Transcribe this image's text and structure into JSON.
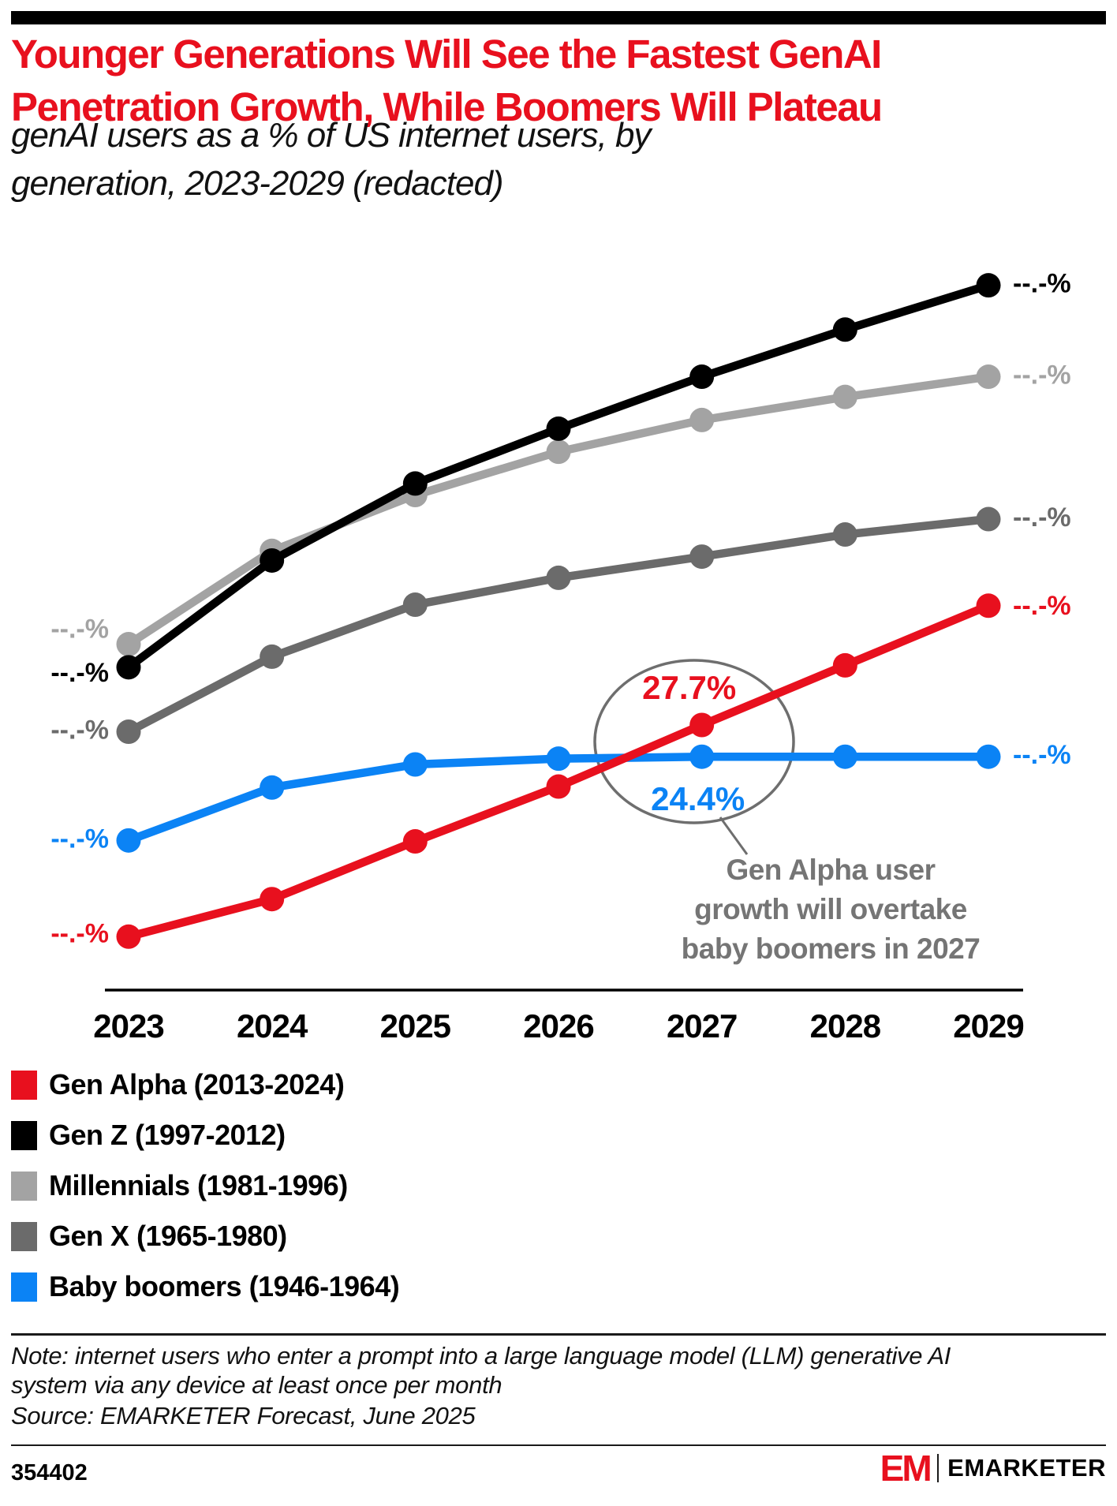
{
  "header": {
    "title_lines": [
      "Younger Generations Will See the Fastest GenAI",
      "Penetration Growth, While Boomers Will Plateau"
    ],
    "subtitle_lines": [
      "genAI users as a % of US internet users, by",
      "generation, 2023-2029 (redacted)"
    ]
  },
  "chart_data": {
    "type": "line",
    "title": "genAI users as a % of US internet users, by generation, 2023-2029 (redacted)",
    "x": [
      "2023",
      "2024",
      "2025",
      "2026",
      "2027",
      "2028",
      "2029"
    ],
    "xlabel": "",
    "ylabel": "genAI users as % of US internet users",
    "ylim": [
      0,
      82
    ],
    "grid": false,
    "legend_position": "bottom-left",
    "redacted_label": "--.-%",
    "series": [
      {
        "name": "Gen Alpha",
        "legend_label": "Gen Alpha (2013-2024)",
        "color": "#E8101E",
        "values": [
          5.7,
          9.6,
          15.6,
          21.3,
          27.7,
          33.9,
          40.1
        ]
      },
      {
        "name": "Gen Z",
        "legend_label": "Gen Z (1997-2012)",
        "color": "#000000",
        "values": [
          33.7,
          44.8,
          52.8,
          58.5,
          63.9,
          68.8,
          73.4
        ]
      },
      {
        "name": "Millennials",
        "legend_label": "Millennials (1981-1996)",
        "color": "#A3A3A3",
        "values": [
          36.1,
          45.8,
          51.6,
          56.1,
          59.4,
          61.8,
          63.9
        ]
      },
      {
        "name": "Gen X",
        "legend_label": "Gen X (1965-1980)",
        "color": "#6B6B6B",
        "values": [
          27.0,
          34.8,
          40.2,
          43.0,
          45.2,
          47.5,
          49.1
        ]
      },
      {
        "name": "Baby boomers",
        "legend_label": "Baby boomers (1946-1964)",
        "color": "#0B83F5",
        "values": [
          15.7,
          21.2,
          23.6,
          24.2,
          24.4,
          24.4,
          24.4
        ]
      }
    ],
    "point_labels": [
      {
        "series_index": 0,
        "x_index": 4,
        "text": "27.7%"
      },
      {
        "series_index": 4,
        "x_index": 4,
        "text": "24.4%"
      }
    ],
    "annotation": {
      "lines": [
        "Gen Alpha user",
        "growth will overtake",
        "baby boomers in 2027"
      ]
    }
  },
  "footer": {
    "note_lines": [
      "Note: internet users who enter a prompt into a large language model (LLM) generative AI",
      "system via any device at least once per month"
    ],
    "source": "Source: EMARKETER Forecast, June 2025",
    "chart_id": "354402",
    "brand_mark": "EM",
    "brand_name": "EMARKETER"
  }
}
